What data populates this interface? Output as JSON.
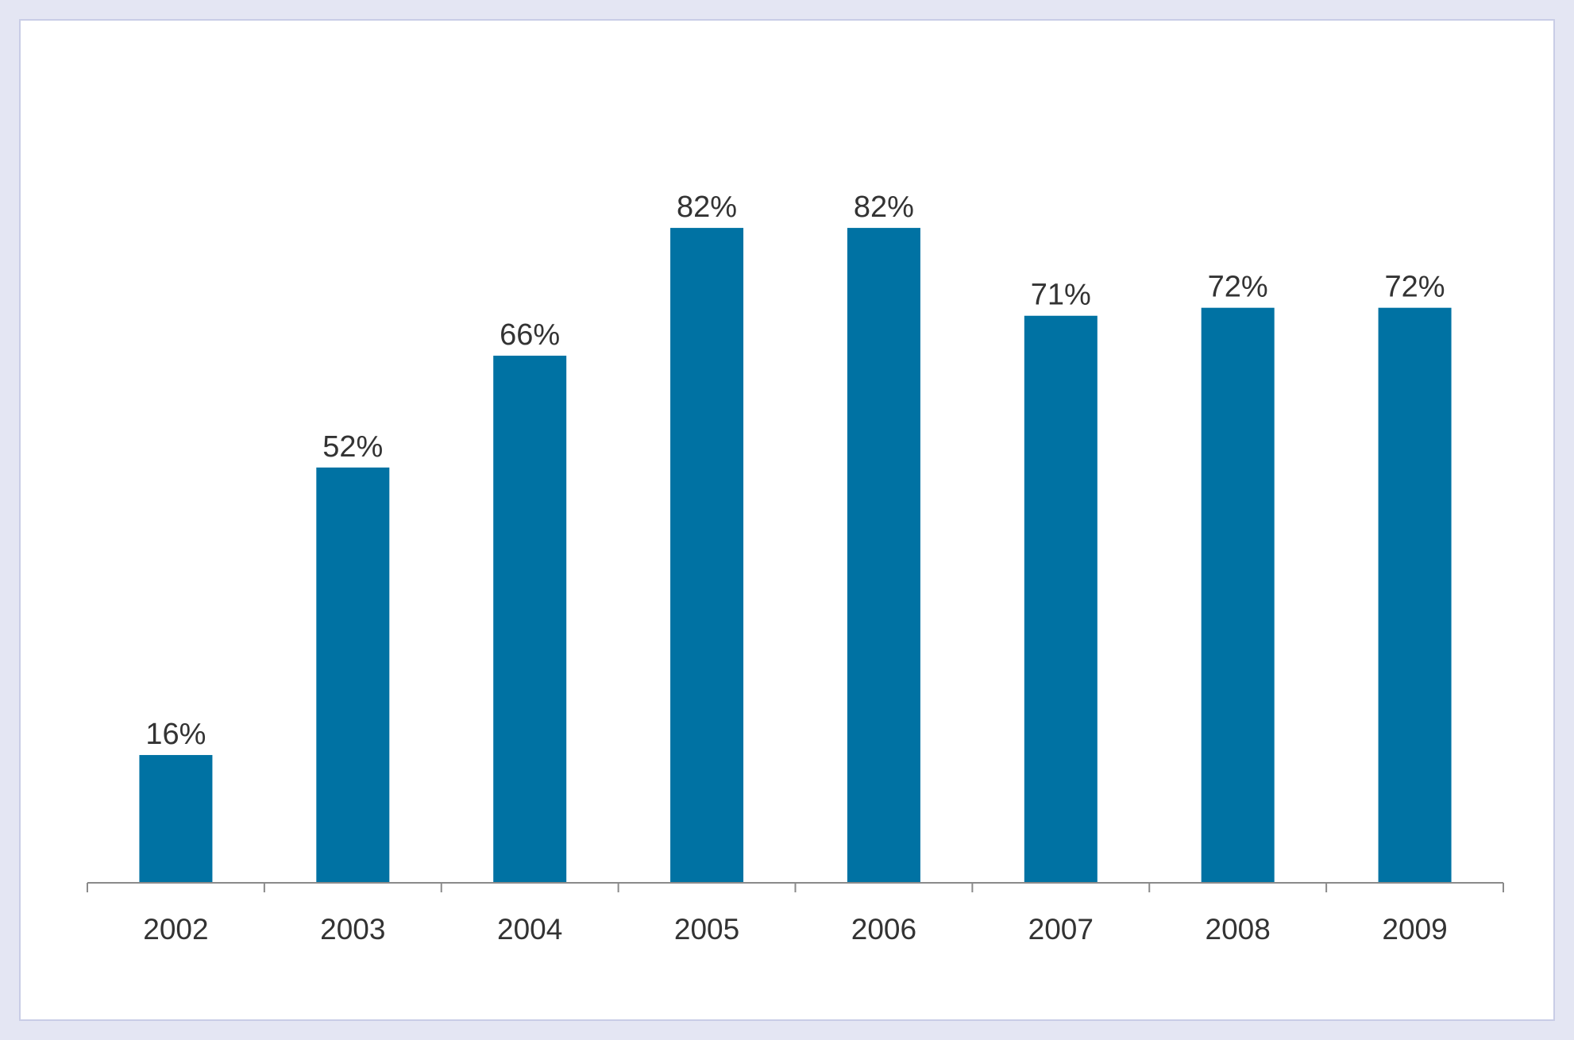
{
  "chart_data": {
    "type": "bar",
    "categories": [
      "2002",
      "2003",
      "2004",
      "2005",
      "2006",
      "2007",
      "2008",
      "2009"
    ],
    "values": [
      16,
      52,
      66,
      82,
      82,
      71,
      72,
      72
    ],
    "value_labels": [
      "16%",
      "52%",
      "66%",
      "82%",
      "82%",
      "71%",
      "72%",
      "72%"
    ],
    "title": "",
    "xlabel": "",
    "ylabel": "",
    "ylim": [
      0,
      100
    ],
    "grid": false,
    "legend": "none",
    "bar_color": "#0072a3"
  }
}
